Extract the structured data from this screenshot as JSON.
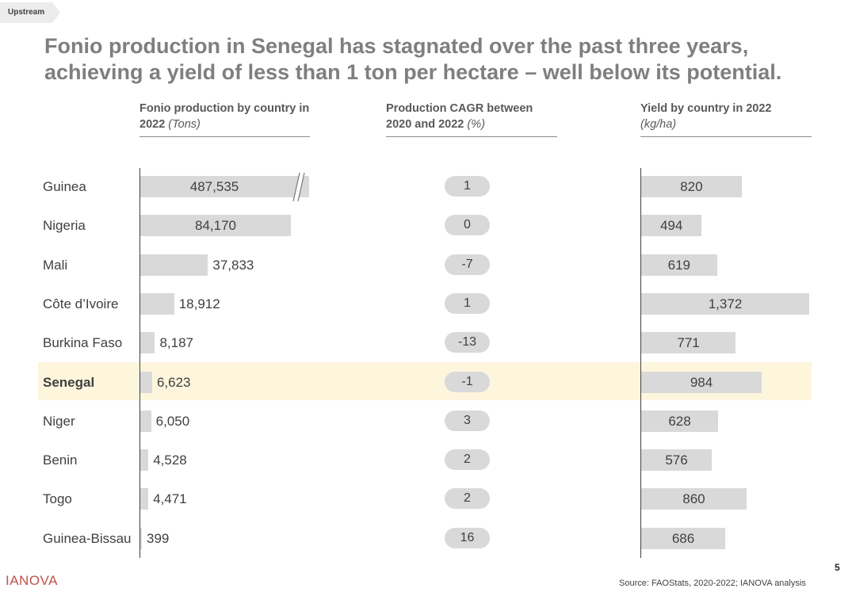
{
  "tag": "Upstream",
  "title_line1": "Fonio production in Senegal has stagnated over the past three years,",
  "title_line2": "achieving a yield of less than 1 ton per hectare – well below its potential.",
  "columns": {
    "production": {
      "label": "Fonio production by country in 2022",
      "unit": "(Tons)"
    },
    "cagr": {
      "label": "Production CAGR between 2020 and 2022",
      "unit": "(%)"
    },
    "yield": {
      "label": "Yield by country in 2022",
      "unit": "(kg/ha)"
    }
  },
  "chart_data": {
    "type": "bar",
    "categories": [
      "Guinea",
      "Nigeria",
      "Mali",
      "Côte d’Ivoire",
      "Burkina Faso",
      "Senegal",
      "Niger",
      "Benin",
      "Togo",
      "Guinea-Bissau"
    ],
    "highlight": "Senegal",
    "series": [
      {
        "name": "Fonio production by country in 2022",
        "values": [
          487535,
          84170,
          37833,
          18912,
          8187,
          6623,
          6050,
          4528,
          4471,
          399
        ],
        "labels": [
          "487,535",
          "84,170",
          "37,833",
          "18,912",
          "8,187",
          "6,623",
          "6,050",
          "4,528",
          "4,471",
          "399"
        ],
        "axis_break": "Guinea"
      },
      {
        "name": "Production CAGR between 2020 and 2022",
        "values": [
          1,
          0,
          -7,
          1,
          -13,
          -1,
          3,
          2,
          2,
          16
        ],
        "labels": [
          "1",
          "0",
          "-7",
          "1",
          "-13",
          "-1",
          "3",
          "2",
          "2",
          "16"
        ]
      },
      {
        "name": "Yield by country in 2022",
        "values": [
          820,
          494,
          619,
          1372,
          771,
          984,
          628,
          576,
          860,
          686
        ],
        "labels": [
          "820",
          "494",
          "619",
          "1,372",
          "771",
          "984",
          "628",
          "576",
          "860",
          "686"
        ]
      }
    ]
  },
  "page_number": "5",
  "logo": "IANOVA",
  "source": "Source: FAOStats, 2020-2022; IANOVA analysis",
  "colors": {
    "bar": "#d9d9d9",
    "highlight": "#fdf6dd",
    "title": "#7f7f7f",
    "logo": "#c0504d"
  }
}
